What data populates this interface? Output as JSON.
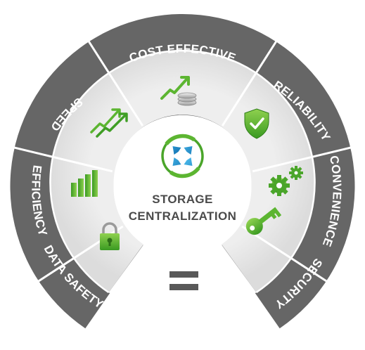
{
  "center": {
    "line1": "STORAGE",
    "line2": "CENTRALIZATION",
    "icon": "arrows-converging-icon"
  },
  "segments": [
    {
      "id": "data-safety",
      "label": "DATA SAFETY",
      "icon": "padlock-icon"
    },
    {
      "id": "efficiency",
      "label": "EFFICIENCY",
      "icon": "bar-chart-icon"
    },
    {
      "id": "speed",
      "label": "SPEED",
      "icon": "rising-arrows-icon"
    },
    {
      "id": "cost-effective",
      "label": "COST EFFECTIVE",
      "icon": "coins-arrow-icon"
    },
    {
      "id": "reliability",
      "label": "RELIABILITY",
      "icon": "shield-check-icon"
    },
    {
      "id": "convenience",
      "label": "CONVENIENCE",
      "icon": "gears-icon"
    },
    {
      "id": "security",
      "label": "SECURITY",
      "icon": "key-icon"
    }
  ],
  "bottom_icon": "equals-icon",
  "colors": {
    "outer_ring": "#666666",
    "inner_ring": "#e6e6e6",
    "divider": "#ffffff",
    "green": "#5cb531",
    "blue": "#1b8fd0",
    "center_text": "#4a4a4a"
  }
}
